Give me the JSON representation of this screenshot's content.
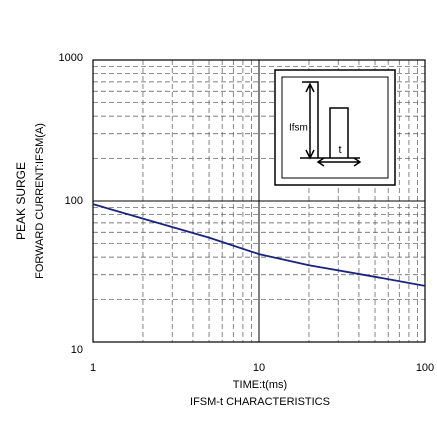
{
  "chart_data": {
    "type": "line",
    "x_label": "TIME:t(ms)",
    "subtitle": "IFSM-t CHARACTERISTICS",
    "y_labels": [
      "PEAK SURGE",
      "FORWARD CURRENT:IFSM(A)"
    ],
    "inset_labels": [
      "Ifsm",
      "t"
    ],
    "x": [
      1,
      2,
      5,
      10,
      20,
      50,
      100
    ],
    "series": [
      {
        "color": "#1a237e",
        "values": [
          95,
          75,
          55,
          42,
          35,
          29,
          25
        ]
      }
    ],
    "xlim": [
      1,
      100
    ],
    "ylim": [
      10,
      1000
    ],
    "xticks": [
      1,
      10,
      100
    ],
    "yticks": [
      10,
      100,
      1000
    ],
    "xminor": [
      2,
      3,
      4,
      5,
      6,
      7,
      8,
      9,
      20,
      30,
      40,
      50,
      60,
      70,
      80,
      90
    ],
    "yminor": [
      20,
      30,
      40,
      50,
      60,
      70,
      80,
      90,
      200,
      300,
      400,
      500,
      600,
      700,
      800,
      900
    ],
    "log_x": true,
    "log_y": true,
    "grid": true
  }
}
